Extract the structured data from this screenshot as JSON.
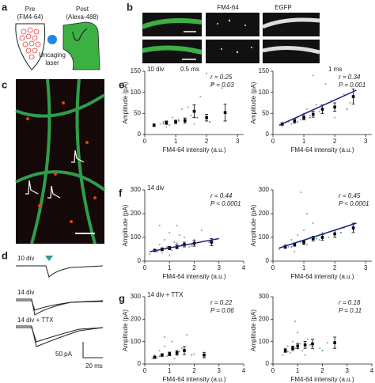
{
  "labels": {
    "a": "a",
    "b": "b",
    "c": "c",
    "d": "d",
    "e": "e",
    "f": "f",
    "g": "g",
    "pre": "Pre",
    "pre_dye": "(FM4-64)",
    "post": "Post",
    "post_dye": "(Alexa-488)",
    "uncaging": "Uncaging",
    "laser": "laser",
    "b_fm": "FM4-64",
    "b_egfp": "EGFP",
    "d_10": "10 div",
    "d_14": "14 div",
    "d_ttx": "14 div + TTX",
    "d_pa": "50 pA",
    "d_ms": "20 ms"
  },
  "chart_data": [
    {
      "type": "scatter",
      "xlabel": "FM4-64 intensity (a.u.)",
      "ylabel": "Amplitude (pA)",
      "annotations": {
        "label": "10 div",
        "time": "0.5 ms",
        "r": "r = 0.25",
        "p": "P = 0.03"
      },
      "xlim": [
        0,
        3.2
      ],
      "ylim": [
        0,
        150
      ],
      "xticks": [
        0,
        1,
        2,
        3
      ],
      "yticks": [
        0,
        50,
        100,
        150
      ],
      "series": [
        {
          "color": "#999999",
          "x": [
            0.3,
            0.5,
            0.6,
            0.8,
            0.9,
            1.0,
            1.1,
            1.2,
            1.3,
            1.5,
            1.6,
            1.8,
            2.0,
            2.2,
            2.5,
            0.7,
            1.4
          ],
          "values": [
            20,
            25,
            30,
            22,
            40,
            28,
            35,
            60,
            30,
            45,
            25,
            90,
            145,
            120,
            110,
            18,
            65
          ]
        },
        {
          "color": "#2a9d8f",
          "x": [
            0.6,
            1.1,
            1.7,
            2.1
          ],
          "values": [
            26,
            32,
            40,
            30
          ]
        },
        {
          "color": "#000000",
          "x": [
            0.3,
            0.7,
            1.0,
            1.3,
            1.6,
            2.0,
            2.6
          ],
          "values": [
            22,
            28,
            30,
            33,
            55,
            40,
            52
          ],
          "errors": [
            3,
            4,
            4,
            6,
            15,
            8,
            20
          ]
        }
      ]
    },
    {
      "type": "scatter",
      "xlabel": "FM4-64 intensity (a.u.)",
      "ylabel": "Amplitude (pA)",
      "annotations": {
        "time": "1 ms",
        "r": "r = 0.34",
        "p": "P = 0.001"
      },
      "xlim": [
        0,
        3.2
      ],
      "ylim": [
        0,
        150
      ],
      "xticks": [
        0,
        1,
        2,
        3
      ],
      "yticks": [
        0,
        50,
        100,
        150
      ],
      "series": [
        {
          "color": "#999999",
          "x": [
            0.3,
            0.5,
            0.6,
            0.8,
            0.9,
            1.0,
            1.1,
            1.2,
            1.4,
            1.5,
            1.7,
            1.9,
            2.0,
            2.3,
            2.5,
            1.3,
            0.7
          ],
          "values": [
            20,
            30,
            25,
            40,
            35,
            50,
            60,
            45,
            70,
            55,
            120,
            80,
            40,
            95,
            75,
            140,
            28
          ]
        },
        {
          "color": "#2a9d8f",
          "x": [
            0.8,
            1.2,
            1.6,
            2.4
          ],
          "values": [
            30,
            40,
            50,
            60
          ]
        },
        {
          "color": "#000000",
          "x": [
            0.3,
            0.7,
            1.0,
            1.3,
            1.6,
            2.0,
            2.6
          ],
          "values": [
            25,
            32,
            40,
            48,
            60,
            65,
            90
          ],
          "errors": [
            3,
            5,
            5,
            7,
            10,
            10,
            18
          ]
        },
        {
          "color": "#1a237e",
          "line": true,
          "x": [
            0.2,
            2.7
          ],
          "values": [
            22,
            105
          ]
        }
      ]
    },
    {
      "type": "scatter",
      "xlabel": "FM4-64 intensity (a.u.)",
      "ylabel": "Amplitude (pA)",
      "annotations": {
        "label": "14 div",
        "r": "r = 0.44",
        "p": "P < 0.0001"
      },
      "xlim": [
        0,
        4
      ],
      "ylim": [
        0,
        300
      ],
      "xticks": [
        0,
        1,
        2,
        3,
        4
      ],
      "yticks": [
        0,
        100,
        200,
        300
      ],
      "series": [
        {
          "color": "#999999",
          "x": [
            0.2,
            0.4,
            0.5,
            0.6,
            0.7,
            0.8,
            0.9,
            1.0,
            1.1,
            1.2,
            1.3,
            1.5,
            1.6,
            1.8,
            2.0,
            2.3,
            2.6,
            0.6,
            1.0,
            1.4
          ],
          "values": [
            30,
            50,
            40,
            70,
            35,
            90,
            60,
            120,
            45,
            80,
            150,
            70,
            100,
            60,
            90,
            130,
            80,
            150,
            25,
            110
          ]
        },
        {
          "color": "#2a9d8f",
          "x": [
            0.5,
            0.9,
            1.3,
            1.9
          ],
          "values": [
            45,
            55,
            75,
            65
          ]
        },
        {
          "color": "#000000",
          "x": [
            0.4,
            0.7,
            1.0,
            1.3,
            1.6,
            2.0,
            2.7
          ],
          "values": [
            45,
            50,
            55,
            60,
            70,
            75,
            80
          ],
          "errors": [
            5,
            6,
            7,
            8,
            10,
            12,
            15
          ]
        },
        {
          "color": "#1a237e",
          "line": true,
          "x": [
            0.2,
            3.0
          ],
          "values": [
            40,
            95
          ]
        }
      ]
    },
    {
      "type": "scatter",
      "xlabel": "FM4-64 intensity (a.u.)",
      "ylabel": "Amplitude (pA)",
      "annotations": {
        "r": "r = 0.45",
        "p": "P < 0.0001"
      },
      "xlim": [
        0,
        3.2
      ],
      "ylim": [
        0,
        300
      ],
      "xticks": [
        0,
        1,
        2,
        3
      ],
      "yticks": [
        0,
        100,
        200,
        300
      ],
      "series": [
        {
          "color": "#999999",
          "x": [
            0.2,
            0.4,
            0.5,
            0.6,
            0.7,
            0.8,
            0.9,
            1.0,
            1.1,
            1.2,
            1.3,
            1.5,
            1.6,
            1.8,
            2.0,
            2.3,
            2.6,
            0.9,
            1.1
          ],
          "values": [
            50,
            70,
            60,
            90,
            40,
            110,
            80,
            130,
            70,
            100,
            160,
            90,
            120,
            100,
            110,
            140,
            130,
            290,
            200
          ]
        },
        {
          "color": "#2a9d8f",
          "x": [
            0.6,
            1.0,
            1.4,
            2.2
          ],
          "values": [
            60,
            70,
            95,
            120
          ]
        },
        {
          "color": "#000000",
          "x": [
            0.4,
            0.7,
            1.0,
            1.3,
            1.6,
            2.0,
            2.6
          ],
          "values": [
            60,
            70,
            80,
            95,
            100,
            115,
            140
          ],
          "errors": [
            6,
            7,
            8,
            10,
            12,
            15,
            20
          ]
        },
        {
          "color": "#1a237e",
          "line": true,
          "x": [
            0.2,
            2.7
          ],
          "values": [
            55,
            160
          ]
        }
      ]
    },
    {
      "type": "scatter",
      "xlabel": "FM4-64 intensity (a.u.)",
      "ylabel": "Amplitude (pA)",
      "annotations": {
        "label": "14 div + TTX",
        "r": "r = 0.22",
        "p": "P = 0.06"
      },
      "xlim": [
        0,
        4
      ],
      "ylim": [
        0,
        300
      ],
      "xticks": [
        0,
        1,
        2,
        3,
        4
      ],
      "yticks": [
        0,
        100,
        200,
        300
      ],
      "series": [
        {
          "color": "#999999",
          "x": [
            0.3,
            0.4,
            0.5,
            0.6,
            0.7,
            0.8,
            0.9,
            1.0,
            1.1,
            1.3,
            1.5,
            1.7,
            2.0,
            2.4,
            0.8,
            1.2
          ],
          "values": [
            25,
            40,
            30,
            60,
            45,
            80,
            35,
            50,
            100,
            40,
            70,
            130,
            45,
            40,
            120,
            25
          ]
        },
        {
          "color": "#2a9d8f",
          "x": [
            0.6,
            1.0,
            1.4,
            1.9
          ],
          "values": [
            35,
            45,
            55,
            40
          ]
        },
        {
          "color": "#000000",
          "x": [
            0.4,
            0.7,
            1.0,
            1.3,
            1.6,
            2.4
          ],
          "values": [
            30,
            40,
            45,
            50,
            60,
            40
          ],
          "errors": [
            5,
            6,
            8,
            10,
            18,
            12
          ]
        }
      ]
    },
    {
      "type": "scatter",
      "xlabel": "FM4-64 intensity (a.u.)",
      "ylabel": "Amplitude (pA)",
      "annotations": {
        "r": "r = 0.18",
        "p": "P = 0.11"
      },
      "xlim": [
        0,
        4
      ],
      "ylim": [
        0,
        300
      ],
      "xticks": [
        0,
        1,
        2,
        3,
        4
      ],
      "yticks": [
        0,
        100,
        200,
        300
      ],
      "series": [
        {
          "color": "#999999",
          "x": [
            0.4,
            0.5,
            0.6,
            0.7,
            0.8,
            0.9,
            1.0,
            1.1,
            1.2,
            1.4,
            1.6,
            1.9,
            2.2,
            0.9,
            1.3
          ],
          "values": [
            40,
            60,
            80,
            50,
            100,
            70,
            140,
            90,
            60,
            110,
            80,
            70,
            95,
            190,
            40
          ]
        },
        {
          "color": "#2a9d8f",
          "x": [
            0.6,
            1.0,
            1.5,
            2.0
          ],
          "values": [
            55,
            70,
            85,
            60
          ]
        },
        {
          "color": "#000000",
          "x": [
            0.5,
            0.8,
            1.0,
            1.3,
            1.6,
            2.5
          ],
          "values": [
            60,
            70,
            80,
            85,
            90,
            95
          ],
          "errors": [
            8,
            10,
            12,
            15,
            20,
            25
          ]
        }
      ]
    }
  ]
}
